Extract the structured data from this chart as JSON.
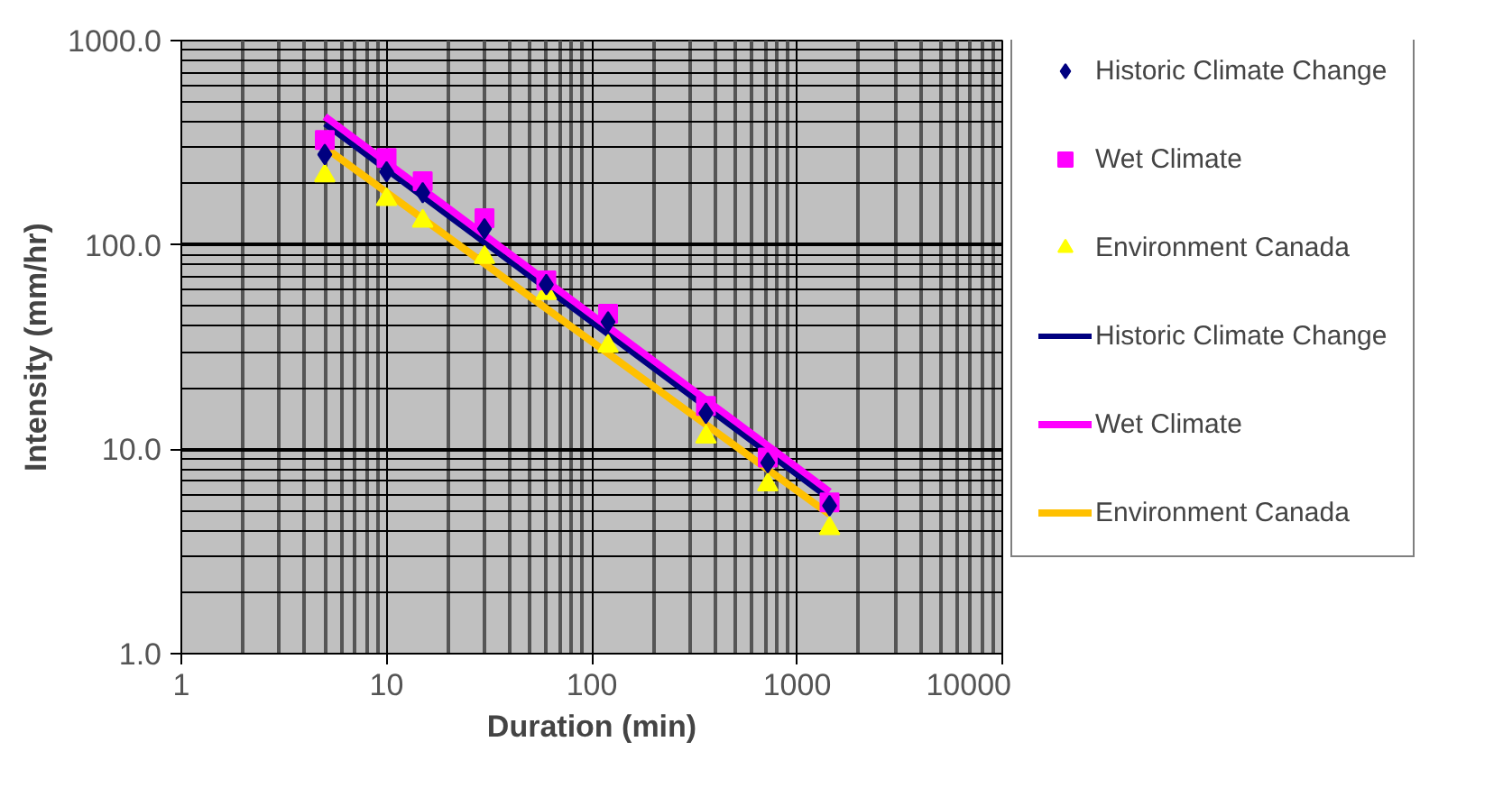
{
  "chart_data": {
    "type": "scatter",
    "xlabel": "Duration (min)",
    "ylabel": "Intensity (mm/hr)",
    "log": "xy",
    "xlim": [
      1,
      10000
    ],
    "xticks": [
      1,
      10,
      100,
      1000,
      10000
    ],
    "ylim": [
      1,
      1000
    ],
    "yticks": [
      {
        "value": 1,
        "label": "1.0"
      },
      {
        "value": 10,
        "label": "10.0"
      },
      {
        "value": 100,
        "label": "100.0"
      },
      {
        "value": 1000,
        "label": "1000.0"
      }
    ],
    "grid": true,
    "legend": "right",
    "series": [
      {
        "name": "Historic Climate Change",
        "marker": "diamond",
        "color": "#000080",
        "x": [
          5,
          10,
          15,
          30,
          60,
          120,
          360,
          720,
          1440
        ],
        "values": [
          277,
          228,
          180,
          120,
          64,
          42,
          15,
          8.6,
          5.3
        ]
      },
      {
        "name": "Wet Climate",
        "marker": "square",
        "color": "#ff00ff",
        "x": [
          5,
          10,
          15,
          30,
          60,
          120,
          360,
          720,
          1440
        ],
        "values": [
          326,
          266,
          205,
          135,
          67,
          46,
          16.3,
          9.1,
          5.5
        ]
      },
      {
        "name": "Environment Canada",
        "marker": "triangle",
        "color": "#ffff00",
        "x": [
          5,
          10,
          15,
          30,
          60,
          120,
          360,
          720,
          1440
        ],
        "values": [
          218,
          167,
          131,
          87,
          58,
          32,
          11.5,
          6.7,
          4.1
        ]
      },
      {
        "name": "Historic Climate Change",
        "type": "line",
        "color": "#000080",
        "x": [
          5,
          1440
        ],
        "values": [
          390,
          5.7
        ]
      },
      {
        "name": "Wet Climate",
        "type": "line",
        "color": "#ff00ff",
        "x": [
          5,
          1440
        ],
        "values": [
          425,
          6.2
        ]
      },
      {
        "name": "Environment Canada",
        "type": "line",
        "color": "#ffc000",
        "x": [
          5,
          1440
        ],
        "values": [
          300,
          4.8
        ]
      }
    ]
  }
}
